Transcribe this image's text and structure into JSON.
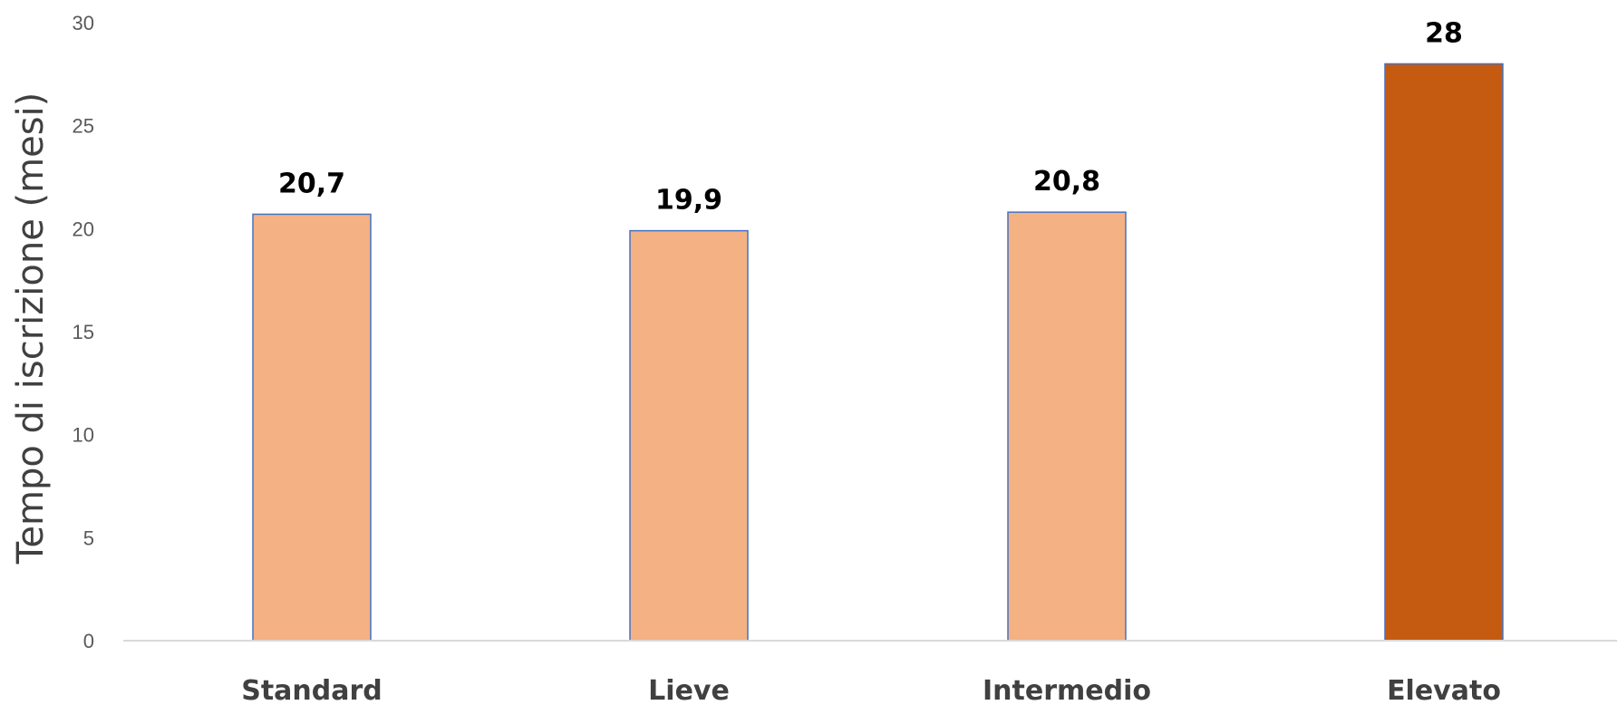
{
  "chart_data": {
    "type": "bar",
    "title": "",
    "xlabel": "",
    "ylabel": "Tempo di iscrizione (mesi)",
    "categories": [
      "Standard",
      "Lieve",
      "Intermedio",
      "Elevato"
    ],
    "values": [
      20.7,
      19.9,
      20.8,
      28
    ],
    "value_labels": [
      "20,7",
      "19,9",
      "20,8",
      "28"
    ],
    "yticks": [
      "0",
      "5",
      "10",
      "15",
      "20",
      "25",
      "30"
    ],
    "ylim": [
      0,
      30
    ],
    "grid": false,
    "legend": "none",
    "colors": {
      "default_bar": "#F4B183",
      "highlight_bar": "#C55A11",
      "bar_edge": "#4472C4",
      "axis_line": "#D9D9D9"
    },
    "highlight": [
      "Elevato"
    ]
  }
}
